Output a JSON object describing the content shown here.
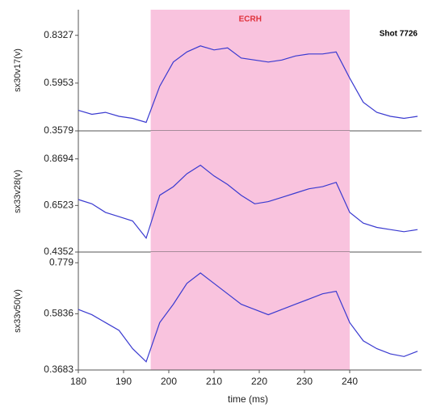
{
  "chart_data": [
    {
      "type": "line",
      "ylabel": "sx30v17(v)",
      "color": "#3a3ad0",
      "x": [
        180,
        183,
        186,
        189,
        192,
        195,
        198,
        201,
        204,
        207,
        210,
        213,
        216,
        219,
        222,
        225,
        228,
        231,
        234,
        237,
        240,
        243,
        246,
        249,
        252,
        255
      ],
      "values": [
        0.46,
        0.44,
        0.45,
        0.43,
        0.42,
        0.4,
        0.58,
        0.7,
        0.75,
        0.78,
        0.76,
        0.77,
        0.72,
        0.71,
        0.7,
        0.71,
        0.73,
        0.74,
        0.74,
        0.75,
        0.62,
        0.5,
        0.45,
        0.43,
        0.42,
        0.43
      ],
      "xlim": [
        180,
        255
      ],
      "ylim": [
        0.3579,
        0.96
      ],
      "yticks": [
        0.3579,
        0.5953,
        0.8327
      ],
      "span": {
        "x": [
          196,
          240
        ],
        "color": "#f9c3de"
      },
      "annotations": [
        {
          "text": "ECRH",
          "color": "#e0303a"
        },
        {
          "text": "Shot 7726",
          "color": "#000000"
        }
      ]
    },
    {
      "type": "line",
      "ylabel": "sx33v28(v)",
      "color": "#3a3ad0",
      "x": [
        180,
        183,
        186,
        189,
        192,
        195,
        198,
        201,
        204,
        207,
        210,
        213,
        216,
        219,
        222,
        225,
        228,
        231,
        234,
        237,
        240,
        243,
        246,
        249,
        252,
        255
      ],
      "values": [
        0.68,
        0.66,
        0.62,
        0.6,
        0.58,
        0.5,
        0.7,
        0.74,
        0.8,
        0.84,
        0.79,
        0.75,
        0.7,
        0.66,
        0.67,
        0.69,
        0.71,
        0.73,
        0.74,
        0.76,
        0.62,
        0.57,
        0.55,
        0.54,
        0.53,
        0.54
      ],
      "xlim": [
        180,
        255
      ],
      "ylim": [
        0.4352,
        1.0
      ],
      "yticks": [
        0.4352,
        0.6523,
        0.8694
      ],
      "span": {
        "x": [
          196,
          240
        ],
        "color": "#f9c3de"
      }
    },
    {
      "type": "line",
      "ylabel": "sx33v50(v)",
      "color": "#3a3ad0",
      "x": [
        180,
        183,
        186,
        189,
        192,
        195,
        198,
        201,
        204,
        207,
        210,
        213,
        216,
        219,
        222,
        225,
        228,
        231,
        234,
        237,
        240,
        243,
        246,
        249,
        252,
        255
      ],
      "values": [
        0.6,
        0.58,
        0.55,
        0.52,
        0.45,
        0.4,
        0.55,
        0.62,
        0.7,
        0.74,
        0.7,
        0.66,
        0.62,
        0.6,
        0.58,
        0.6,
        0.62,
        0.64,
        0.66,
        0.67,
        0.55,
        0.48,
        0.45,
        0.43,
        0.42,
        0.44
      ],
      "xlim": [
        180,
        255
      ],
      "ylim": [
        0.3683,
        0.82
      ],
      "yticks": [
        0.3683,
        0.5836,
        0.779
      ],
      "span": {
        "x": [
          196,
          240
        ],
        "color": "#f9c3de"
      },
      "xlabel": "time (ms)",
      "xticks": [
        180,
        190,
        200,
        210,
        220,
        230,
        240
      ]
    }
  ]
}
